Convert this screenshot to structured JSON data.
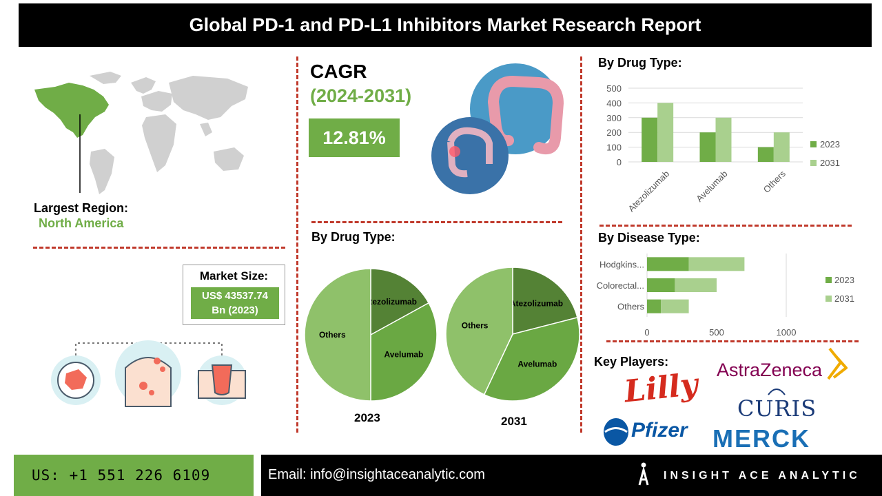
{
  "title": "Global PD-1 and PD-L1 Inhibitors Market Research Report",
  "region": {
    "label": "Largest Region:",
    "value": "North America"
  },
  "cagr": {
    "label": "CAGR",
    "period": "(2024-2031)",
    "value": "12.81%"
  },
  "market_size": {
    "label": "Market Size:",
    "line1": "US$ 43537.74",
    "line2": "Bn (2023)"
  },
  "pie_section": {
    "title": "By Drug Type:",
    "year1": "2023",
    "year2": "2031"
  },
  "bar_section": {
    "title": "By Drug Type:"
  },
  "disease_section": {
    "title": "By Disease Type:"
  },
  "key_players": {
    "title": "Key Players:",
    "logos": [
      "Lilly",
      "AstraZeneca",
      "CURIS",
      "Pfizer",
      "MERCK"
    ]
  },
  "footer": {
    "phone": "US: +1 551 226 6109",
    "email": "Email: info@insightaceanalytic.com",
    "brand": "INSIGHT ACE ANALYTIC"
  },
  "colors": {
    "dark_green": "#5b9a3c",
    "mid_green": "#70ad47",
    "light_green": "#a9d08e",
    "accent_red": "#c0392b"
  },
  "chart_data": [
    {
      "type": "pie",
      "title": "2023",
      "categories": [
        "Atezolizumab",
        "Avelumab",
        "Others"
      ],
      "values": [
        17,
        33,
        50
      ],
      "colors": [
        "#548235",
        "#6aa843",
        "#8fc16a"
      ]
    },
    {
      "type": "pie",
      "title": "2031",
      "categories": [
        "Atezolizumab",
        "Avelumab",
        "Others"
      ],
      "values": [
        21,
        36,
        43
      ],
      "colors": [
        "#548235",
        "#6aa843",
        "#8fc16a"
      ]
    },
    {
      "type": "bar",
      "categories": [
        "Atezolizumab",
        "Avelumab",
        "Others"
      ],
      "series": [
        {
          "name": "2023",
          "values": [
            300,
            200,
            100
          ]
        },
        {
          "name": "2031",
          "values": [
            400,
            300,
            200
          ]
        }
      ],
      "ylim": [
        0,
        500
      ],
      "yticks": [
        "0",
        "100",
        "200",
        "300",
        "400",
        "500"
      ],
      "grid": true,
      "legend": "right"
    },
    {
      "type": "bar",
      "orientation": "horizontal",
      "categories": [
        "Hodgkins...",
        "Colorectal...",
        "Others"
      ],
      "series": [
        {
          "name": "2023",
          "values": [
            300,
            200,
            100
          ]
        },
        {
          "name": "2031",
          "values": [
            400,
            300,
            200
          ]
        }
      ],
      "xlim": [
        0,
        1000
      ],
      "xticks": [
        "0",
        "500",
        "1000"
      ],
      "stacked": true,
      "legend": "right"
    }
  ]
}
